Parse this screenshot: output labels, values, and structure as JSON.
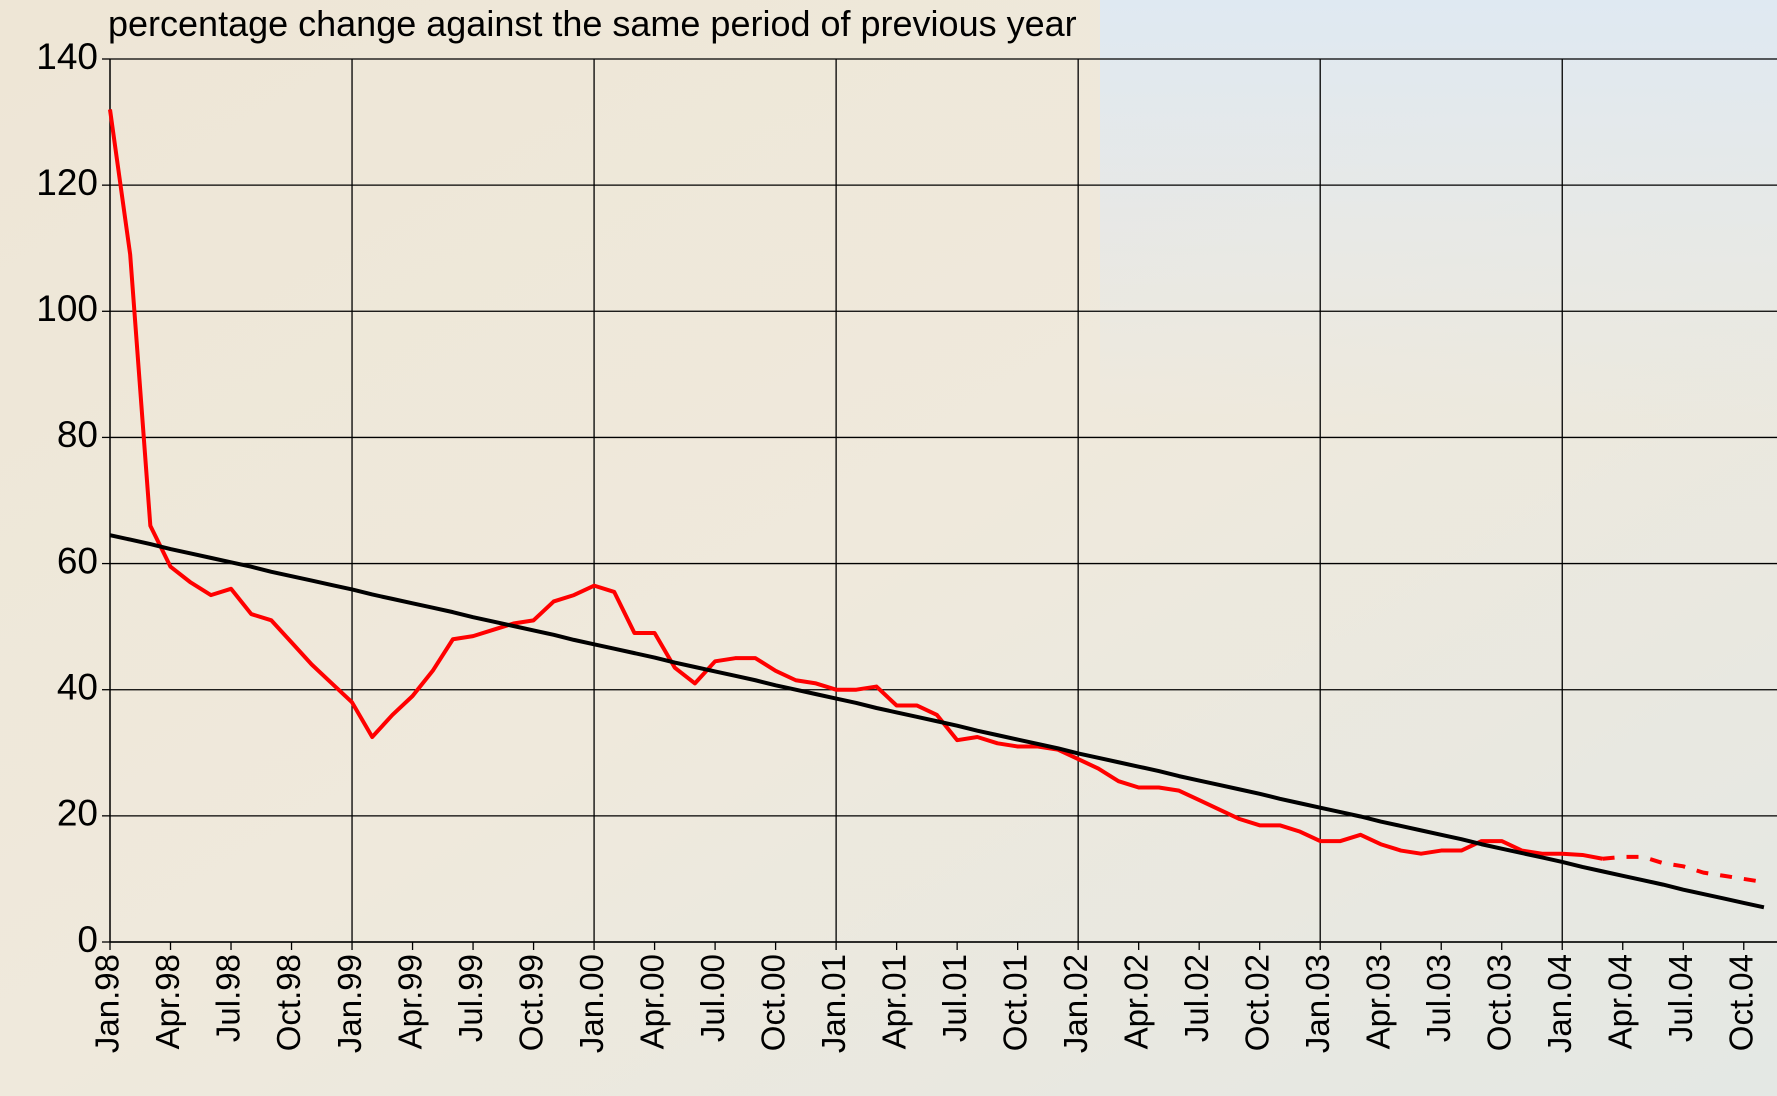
{
  "chart_data": {
    "type": "line",
    "title": "percentage change against the same period of previous year",
    "categories": [
      "Jan.98",
      null,
      null,
      "Apr.98",
      null,
      null,
      "Jul.98",
      null,
      null,
      "Oct.98",
      null,
      null,
      "Jan.99",
      null,
      null,
      "Apr.99",
      null,
      null,
      "Jul.99",
      null,
      null,
      "Oct.99",
      null,
      null,
      "Jan.00",
      null,
      null,
      "Apr.00",
      null,
      null,
      "Jul.00",
      null,
      null,
      "Oct.00",
      null,
      null,
      "Jan.01",
      null,
      null,
      "Apr.01",
      null,
      null,
      "Jul.01",
      null,
      null,
      "Oct.01",
      null,
      null,
      "Jan.02",
      null,
      null,
      "Apr.02",
      null,
      null,
      "Jul.02",
      null,
      null,
      "Oct.02",
      null,
      null,
      "Jan.03",
      null,
      null,
      "Apr.03",
      null,
      null,
      "Jul.03",
      null,
      null,
      "Oct.03",
      null,
      null,
      "Jan.04",
      null,
      null,
      "Apr.04",
      null,
      null,
      "Jul.04",
      null,
      null,
      "Oct.04",
      null
    ],
    "series": [
      {
        "color": "#ff0000",
        "dashed": false,
        "values": [
          132,
          109,
          66,
          59.5,
          57,
          55,
          56,
          52,
          51,
          47.5,
          44,
          41,
          38,
          32.5,
          36,
          39,
          43,
          48,
          48.5,
          49.5,
          50.5,
          51,
          54,
          55,
          56.5,
          55.5,
          49,
          49,
          43.5,
          41,
          44.5,
          45,
          45,
          43,
          41.5,
          41,
          40,
          40,
          40.5,
          37.5,
          37.5,
          36,
          32,
          32.5,
          31.5,
          31,
          31,
          30.5,
          29,
          27.5,
          25.5,
          24.5,
          24.5,
          24,
          22.5,
          21,
          19.5,
          18.5,
          18.5,
          17.5,
          16,
          16,
          17,
          15.5,
          14.5,
          14,
          14.5,
          14.5,
          16,
          16,
          14.5,
          14,
          14,
          13.8,
          13.2,
          null,
          null,
          null,
          null,
          null,
          null,
          null,
          null
        ]
      },
      {
        "color": "#ff0000",
        "dashed": true,
        "values": [
          null,
          null,
          null,
          null,
          null,
          null,
          null,
          null,
          null,
          null,
          null,
          null,
          null,
          null,
          null,
          null,
          null,
          null,
          null,
          null,
          null,
          null,
          null,
          null,
          null,
          null,
          null,
          null,
          null,
          null,
          null,
          null,
          null,
          null,
          null,
          null,
          null,
          null,
          null,
          null,
          null,
          null,
          null,
          null,
          null,
          null,
          null,
          null,
          null,
          null,
          null,
          null,
          null,
          null,
          null,
          null,
          null,
          null,
          null,
          null,
          null,
          null,
          null,
          null,
          null,
          null,
          null,
          null,
          null,
          null,
          null,
          null,
          null,
          null,
          13.2,
          13.5,
          13.5,
          12.5,
          12,
          11,
          10.5,
          10,
          9.5
        ]
      },
      {
        "color": "#000000",
        "dashed": false,
        "values": [
          64.5,
          63.8,
          63.1,
          62.3,
          61.6,
          60.9,
          60.2,
          59.5,
          58.7,
          58.0,
          57.3,
          56.6,
          55.9,
          55.1,
          54.4,
          53.7,
          53.0,
          52.3,
          51.5,
          50.8,
          50.1,
          49.4,
          48.7,
          47.9,
          47.2,
          46.5,
          45.8,
          45.1,
          44.3,
          43.6,
          42.9,
          42.2,
          41.5,
          40.7,
          40.0,
          39.3,
          38.6,
          37.9,
          37.1,
          36.4,
          35.7,
          35.0,
          34.3,
          33.5,
          32.8,
          32.1,
          31.4,
          30.7,
          29.9,
          29.2,
          28.5,
          27.8,
          27.1,
          26.3,
          25.6,
          24.9,
          24.2,
          23.5,
          22.7,
          22.0,
          21.3,
          20.6,
          19.9,
          19.1,
          18.4,
          17.7,
          17.0,
          16.3,
          15.5,
          14.8,
          14.1,
          13.4,
          12.7,
          11.9,
          11.2,
          10.5,
          9.8,
          9.1,
          8.3,
          7.6,
          6.9,
          6.2,
          5.5
        ]
      }
    ],
    "ylim": [
      0,
      140
    ],
    "yticks": [
      0,
      20,
      40,
      60,
      80,
      100,
      120,
      140
    ],
    "grid": true
  }
}
